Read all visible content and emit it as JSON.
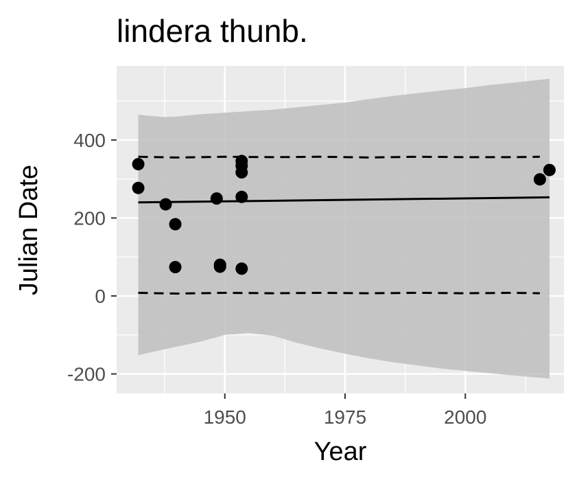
{
  "chart_data": {
    "type": "scatter",
    "title": "lindera thunb.",
    "xlabel": "Year",
    "ylabel": "Julian Date",
    "xlim": [
      1927.5,
      2020.5
    ],
    "ylim": [
      -250,
      590
    ],
    "x_ticks": [
      1950,
      1975,
      2000
    ],
    "x_tick_labels": [
      "1950",
      "1975",
      "2000"
    ],
    "x_minor_ticks": [
      1937.5,
      1962.5,
      1987.5,
      2012.5
    ],
    "y_ticks": [
      -200,
      0,
      200,
      400
    ],
    "y_tick_labels": [
      "-200",
      "0",
      "200",
      "400"
    ],
    "y_minor_ticks": [
      -100,
      100,
      300,
      500
    ],
    "grid": true,
    "background": "#ebebeb",
    "colors": {
      "points": "#000000",
      "band": "#bebebe",
      "grid": "#ffffff",
      "lines": "#000000"
    },
    "points": [
      {
        "x": 1932,
        "y": 338
      },
      {
        "x": 1932,
        "y": 277
      },
      {
        "x": 1937.7,
        "y": 235
      },
      {
        "x": 1939.7,
        "y": 184
      },
      {
        "x": 1939.7,
        "y": 74
      },
      {
        "x": 1948.3,
        "y": 250
      },
      {
        "x": 1949,
        "y": 80
      },
      {
        "x": 1949,
        "y": 75
      },
      {
        "x": 1953.5,
        "y": 346
      },
      {
        "x": 1953.5,
        "y": 334
      },
      {
        "x": 1953.5,
        "y": 317
      },
      {
        "x": 1953.5,
        "y": 254
      },
      {
        "x": 1953.5,
        "y": 70
      },
      {
        "x": 2015.5,
        "y": 299
      },
      {
        "x": 2017.5,
        "y": 323
      }
    ],
    "trend_line": {
      "x": [
        1932,
        2017.5
      ],
      "y": [
        240,
        253
      ]
    },
    "quantile_lines": [
      {
        "style": "dashed",
        "x": [
          1932,
          1940,
          1950,
          1960,
          1970,
          1980,
          1990,
          2000,
          2010,
          2015.5
        ],
        "y": [
          357,
          355,
          357,
          356,
          357,
          355,
          357,
          356,
          356,
          357
        ]
      },
      {
        "style": "dashed",
        "x": [
          1932,
          1940,
          1950,
          1960,
          1970,
          1980,
          1990,
          2000,
          2010,
          2015.5
        ],
        "y": [
          8,
          6,
          8,
          7,
          8,
          7,
          8,
          7,
          8,
          7
        ]
      }
    ],
    "confidence_band": {
      "x": [
        1932,
        1937,
        1940,
        1945,
        1950,
        1955,
        1960,
        1965,
        1970,
        1975,
        1980,
        1985,
        1990,
        1995,
        2000,
        2005,
        2010,
        2017.5
      ],
      "upper": [
        465,
        459,
        460,
        466,
        470,
        474,
        478,
        484,
        490,
        496,
        505,
        513,
        520,
        527,
        533,
        541,
        547,
        557
      ],
      "lower": [
        -152,
        -138,
        -130,
        -117,
        -100,
        -95,
        -102,
        -120,
        -135,
        -148,
        -160,
        -170,
        -178,
        -186,
        -192,
        -198,
        -204,
        -212
      ]
    }
  }
}
